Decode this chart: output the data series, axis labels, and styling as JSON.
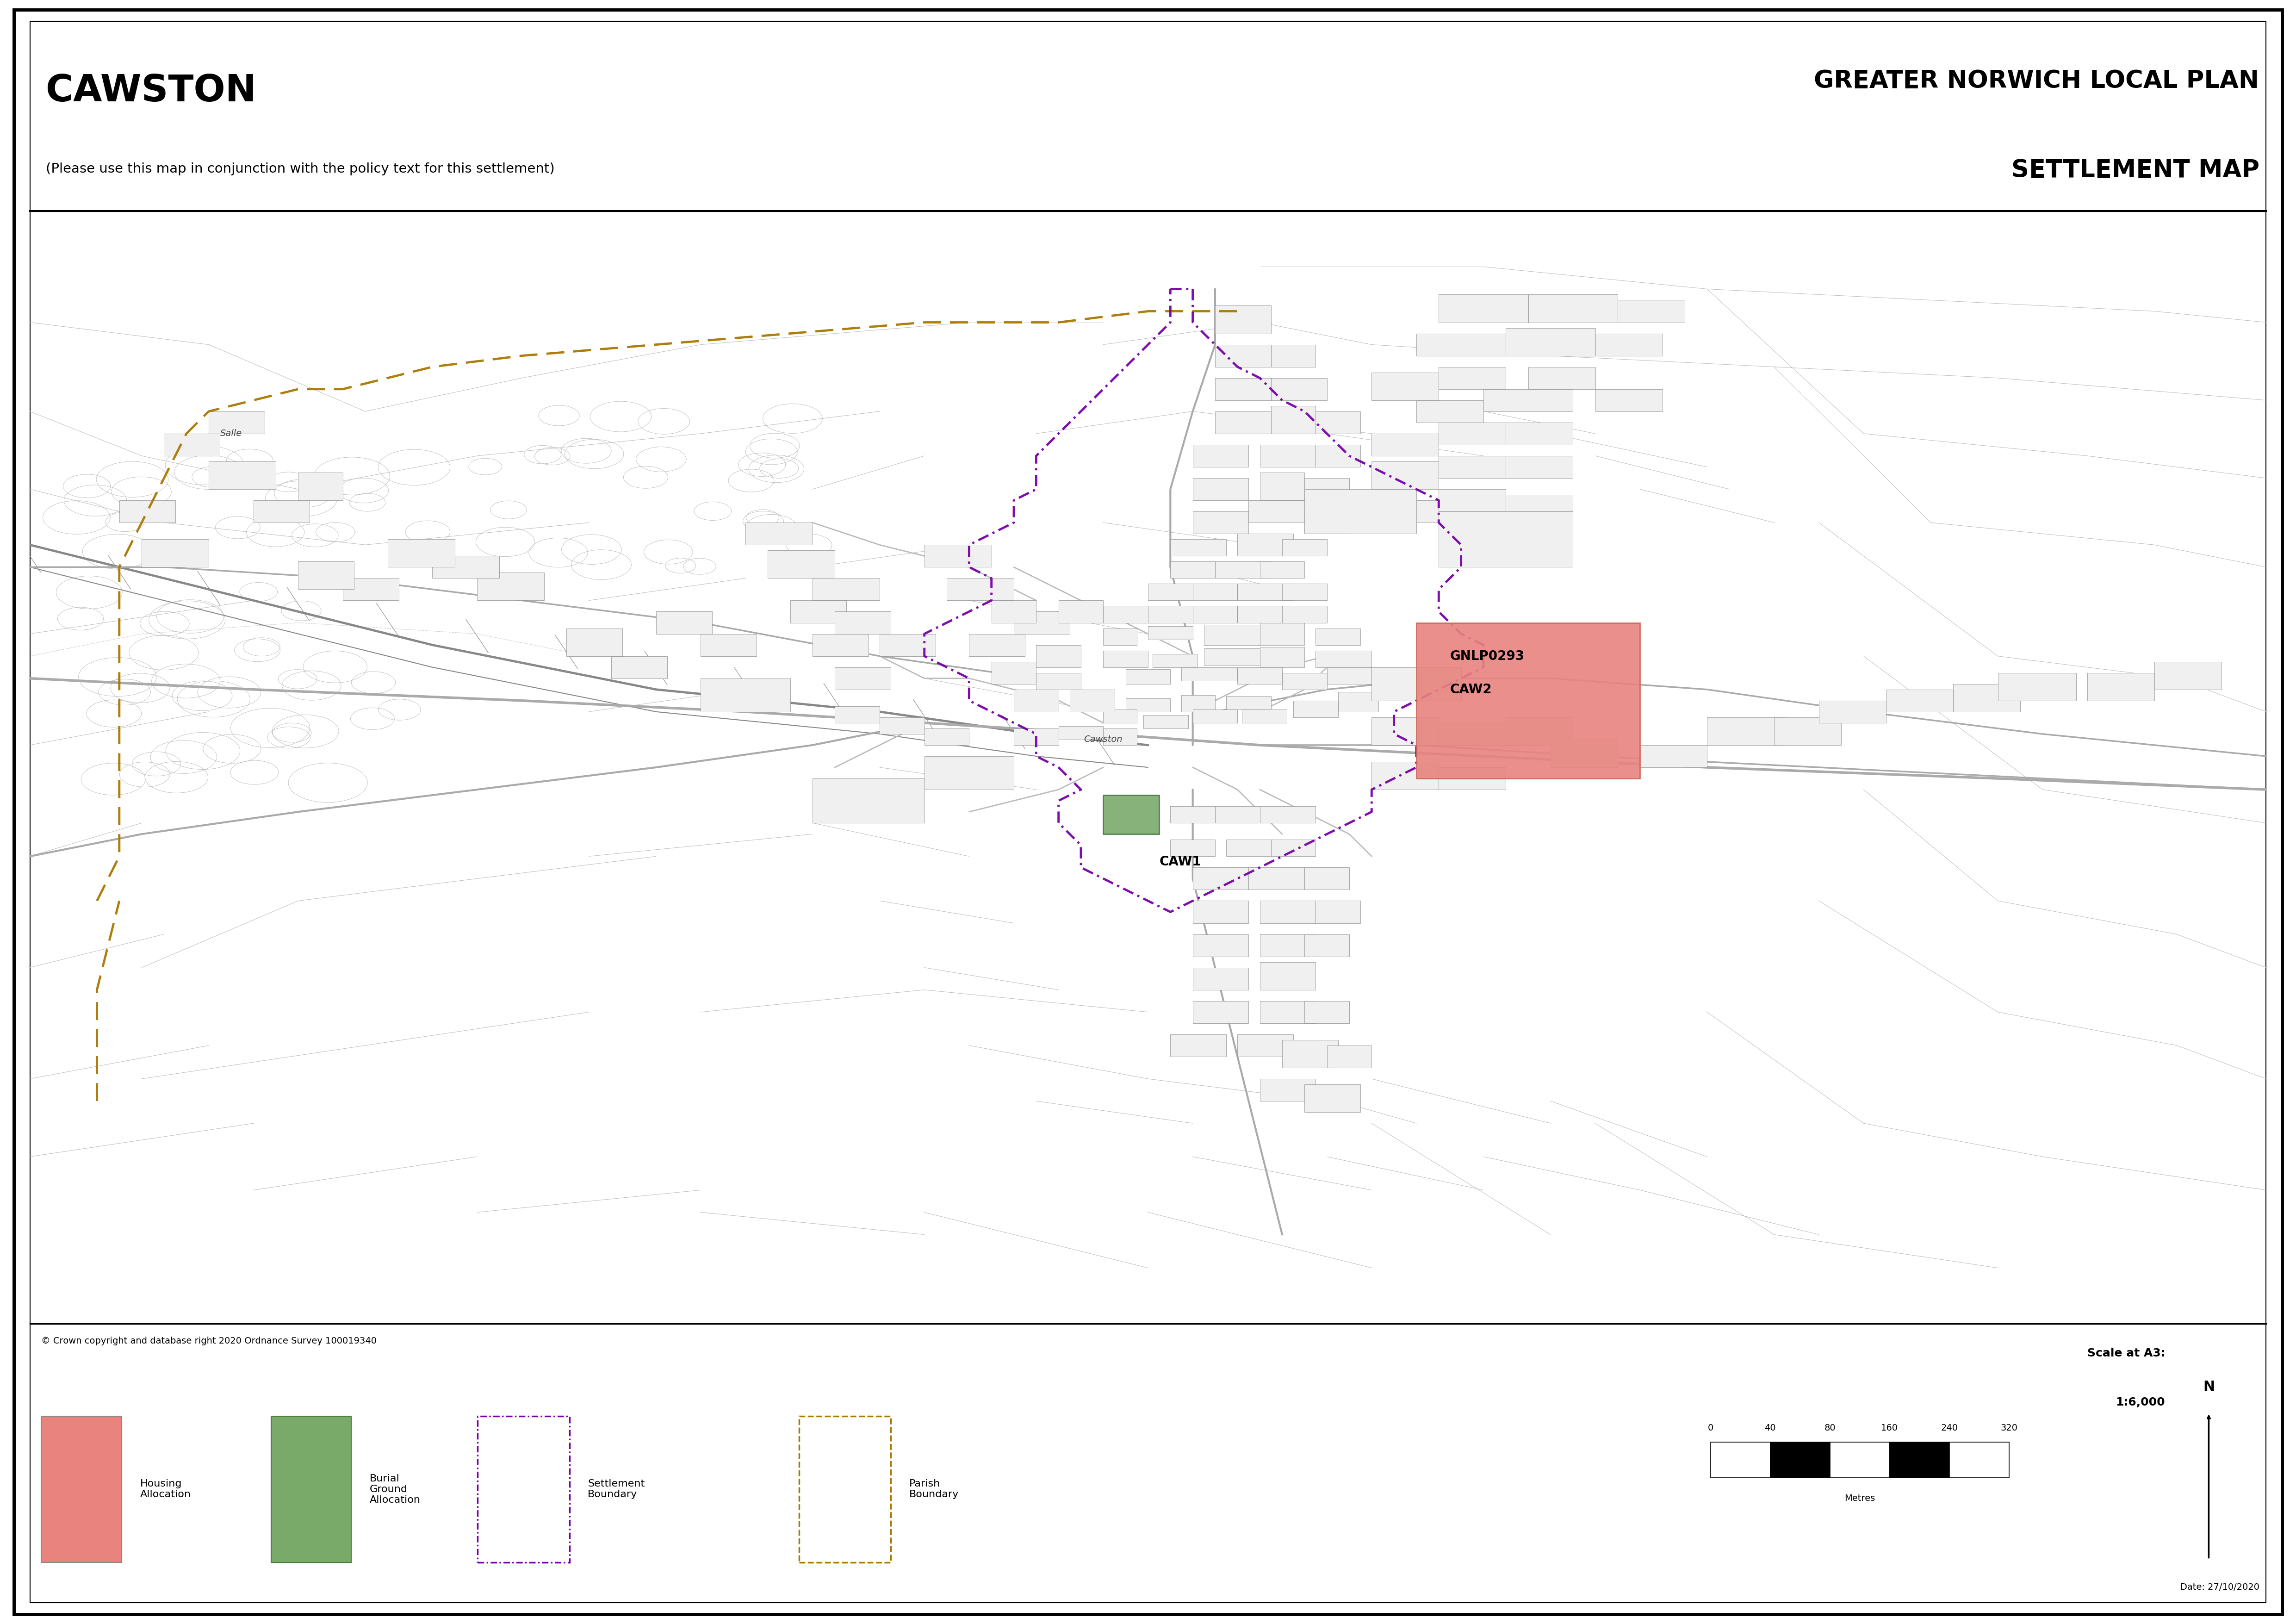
{
  "title_main": "CAWSTON",
  "title_sub": "(Please use this map in conjunction with the policy text for this settlement)",
  "title_right_line1": "GREATER NORWICH LOCAL PLAN",
  "title_right_line2": "SETTLEMENT MAP",
  "background_color": "#ffffff",
  "map_background": "#ffffff",
  "border_color": "#000000",
  "copyright_text": "© Crown copyright and database right 2020 Ordnance Survey 100019340",
  "date_text": "Date: 27/10/2020",
  "scale_text_line1": "Scale at A3:",
  "scale_text_line2": "1:6,000",
  "scale_bar_values": [
    "0",
    "40",
    "80",
    "160",
    "240",
    "320"
  ],
  "scale_bar_label": "Metres",
  "gnlp_label": "GNLP0293",
  "caw2_label": "CAW2",
  "caw1_label": "CAW1",
  "cawston_label": "Cawston",
  "salle_label": "Salle",
  "housing_alloc_color": "#e8837e",
  "burial_color": "#7aaa6a",
  "settlement_boundary_color": "#7700aa",
  "parish_boundary_color": "#aa7700",
  "road_color_major": "#aaaaaa",
  "road_color_minor": "#cccccc",
  "building_fill": "#f5f5f5",
  "building_edge": "#888888",
  "field_line_color": "#bbbbbb",
  "map_line_color": "#999999"
}
